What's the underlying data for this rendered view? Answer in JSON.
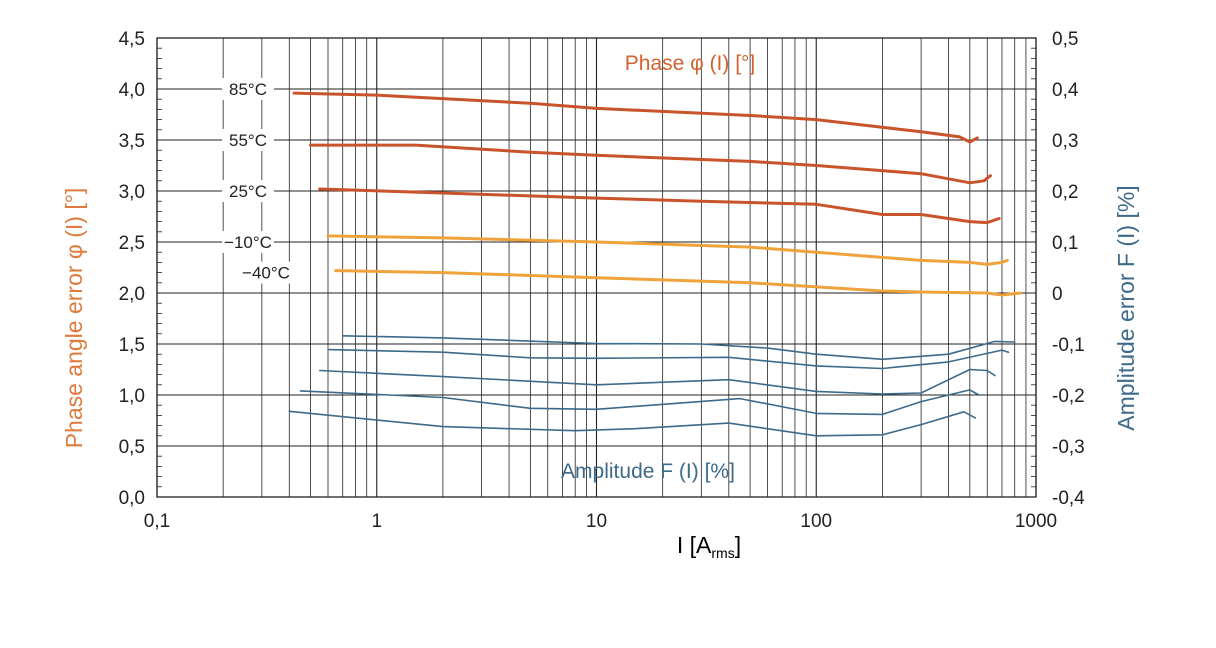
{
  "chart_data": {
    "type": "line",
    "x_scale": "log",
    "xlim": [
      0.1,
      1000
    ],
    "ylim_left": [
      0.0,
      4.5
    ],
    "ylim_right": [
      -0.4,
      0.5
    ],
    "grid": true,
    "xlabel_main": "I [A",
    "xlabel_sub": "rms",
    "xlabel_close": "]",
    "ylabel_left": "Phase angle error φ (I) [°]",
    "ylabel_right": "Amplitude error F (I) [%]",
    "x_ticks": [
      {
        "value": 0.1,
        "label": "0,1"
      },
      {
        "value": 1,
        "label": "1"
      },
      {
        "value": 10,
        "label": "10"
      },
      {
        "value": 100,
        "label": "100"
      },
      {
        "value": 1000,
        "label": "1000"
      }
    ],
    "y_left_ticks": [
      {
        "value": 0.0,
        "label": "0,0"
      },
      {
        "value": 0.5,
        "label": "0,5"
      },
      {
        "value": 1.0,
        "label": "1,0"
      },
      {
        "value": 1.5,
        "label": "1,5"
      },
      {
        "value": 2.0,
        "label": "2,0"
      },
      {
        "value": 2.5,
        "label": "2,5"
      },
      {
        "value": 3.0,
        "label": "3,0"
      },
      {
        "value": 3.5,
        "label": "3,5"
      },
      {
        "value": 4.0,
        "label": "4,0"
      },
      {
        "value": 4.5,
        "label": "4,5"
      }
    ],
    "y_right_ticks": [
      {
        "value": -0.4,
        "label": "-0,4"
      },
      {
        "value": -0.3,
        "label": "-0,3"
      },
      {
        "value": -0.2,
        "label": "-0,2"
      },
      {
        "value": -0.1,
        "label": "-0,1"
      },
      {
        "value": 0,
        "label": "0"
      },
      {
        "value": 0.1,
        "label": "0,1"
      },
      {
        "value": 0.2,
        "label": "0,2"
      },
      {
        "value": 0.3,
        "label": "0,3"
      },
      {
        "value": 0.4,
        "label": "0,4"
      },
      {
        "value": 0.5,
        "label": "0,5"
      }
    ],
    "phase_title": "Phase φ (I) [°]",
    "amplitude_title": "Amplitude F (I) [%]",
    "colors": {
      "phase_hot": "#c9532b",
      "phase_cold": "#f0a33c",
      "amplitude": "#3d6a8a",
      "phase_title": "#d4622f",
      "amplitude_title": "#3d6a8a",
      "left_axis_title": "#e07a3c",
      "right_axis_title": "#3d6a8a",
      "grid": "#222222"
    },
    "phase_series": [
      {
        "name": "85°C",
        "label_y": 4.0,
        "color_key": "phase_hot",
        "points": [
          [
            0.42,
            3.96
          ],
          [
            1,
            3.94
          ],
          [
            5,
            3.86
          ],
          [
            10,
            3.81
          ],
          [
            50,
            3.74
          ],
          [
            100,
            3.7
          ],
          [
            300,
            3.58
          ],
          [
            450,
            3.53
          ],
          [
            500,
            3.48
          ],
          [
            540,
            3.52
          ]
        ]
      },
      {
        "name": "55°C",
        "label_y": 3.5,
        "color_key": "phase_hot",
        "points": [
          [
            0.5,
            3.45
          ],
          [
            1.5,
            3.45
          ],
          [
            5,
            3.38
          ],
          [
            10,
            3.35
          ],
          [
            50,
            3.29
          ],
          [
            100,
            3.25
          ],
          [
            300,
            3.17
          ],
          [
            500,
            3.08
          ],
          [
            580,
            3.1
          ],
          [
            620,
            3.15
          ]
        ]
      },
      {
        "name": "25°C",
        "label_y": 3.0,
        "color_key": "phase_hot",
        "points": [
          [
            0.55,
            3.02
          ],
          [
            2,
            2.98
          ],
          [
            10,
            2.93
          ],
          [
            30,
            2.9
          ],
          [
            100,
            2.87
          ],
          [
            200,
            2.77
          ],
          [
            300,
            2.77
          ],
          [
            500,
            2.7
          ],
          [
            600,
            2.69
          ],
          [
            680,
            2.73
          ]
        ]
      },
      {
        "name": "−10°C",
        "label_y": 2.5,
        "color_key": "phase_cold",
        "points": [
          [
            0.6,
            2.56
          ],
          [
            2,
            2.54
          ],
          [
            10,
            2.5
          ],
          [
            50,
            2.45
          ],
          [
            100,
            2.4
          ],
          [
            300,
            2.32
          ],
          [
            500,
            2.3
          ],
          [
            600,
            2.28
          ],
          [
            700,
            2.3
          ],
          [
            740,
            2.32
          ]
        ]
      },
      {
        "name": "−40°C",
        "label_y": 2.2,
        "color_key": "phase_cold",
        "points": [
          [
            0.65,
            2.22
          ],
          [
            2,
            2.2
          ],
          [
            10,
            2.15
          ],
          [
            50,
            2.1
          ],
          [
            100,
            2.06
          ],
          [
            200,
            2.02
          ],
          [
            300,
            2.01
          ],
          [
            600,
            2.0
          ],
          [
            700,
            1.98
          ],
          [
            850,
            2.0
          ]
        ]
      }
    ],
    "amplitude_series": [
      {
        "points": [
          [
            0.7,
            -0.084
          ],
          [
            2,
            -0.088
          ],
          [
            10,
            -0.099
          ],
          [
            30,
            -0.1
          ],
          [
            60,
            -0.108
          ],
          [
            100,
            -0.12
          ],
          [
            200,
            -0.13
          ],
          [
            400,
            -0.12
          ],
          [
            650,
            -0.095
          ],
          [
            800,
            -0.096
          ]
        ]
      },
      {
        "points": [
          [
            0.6,
            -0.111
          ],
          [
            2,
            -0.116
          ],
          [
            5,
            -0.127
          ],
          [
            10,
            -0.128
          ],
          [
            40,
            -0.126
          ],
          [
            100,
            -0.143
          ],
          [
            200,
            -0.148
          ],
          [
            400,
            -0.135
          ],
          [
            700,
            -0.112
          ],
          [
            750,
            -0.116
          ]
        ]
      },
      {
        "points": [
          [
            0.55,
            -0.152
          ],
          [
            2,
            -0.164
          ],
          [
            10,
            -0.18
          ],
          [
            40,
            -0.17
          ],
          [
            100,
            -0.193
          ],
          [
            200,
            -0.198
          ],
          [
            300,
            -0.196
          ],
          [
            500,
            -0.15
          ],
          [
            600,
            -0.152
          ],
          [
            650,
            -0.162
          ]
        ]
      },
      {
        "points": [
          [
            0.45,
            -0.192
          ],
          [
            2,
            -0.205
          ],
          [
            5,
            -0.226
          ],
          [
            10,
            -0.228
          ],
          [
            45,
            -0.207
          ],
          [
            100,
            -0.236
          ],
          [
            200,
            -0.238
          ],
          [
            300,
            -0.213
          ],
          [
            500,
            -0.19
          ],
          [
            550,
            -0.2
          ]
        ]
      },
      {
        "points": [
          [
            0.4,
            -0.232
          ],
          [
            2,
            -0.262
          ],
          [
            8,
            -0.27
          ],
          [
            15,
            -0.266
          ],
          [
            40,
            -0.255
          ],
          [
            100,
            -0.28
          ],
          [
            200,
            -0.278
          ],
          [
            300,
            -0.258
          ],
          [
            470,
            -0.233
          ],
          [
            530,
            -0.245
          ]
        ]
      }
    ]
  }
}
